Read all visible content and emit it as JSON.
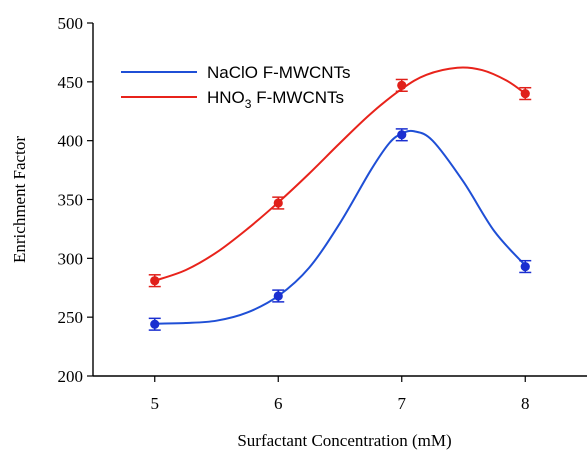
{
  "chart_data": {
    "type": "line",
    "title": "",
    "xlabel": "Surfactant Concentration (mM)",
    "ylabel": "Enrichment Factor",
    "x": [
      5,
      6,
      7,
      8
    ],
    "xlim": [
      4.5,
      8.5
    ],
    "ylim": [
      200,
      500
    ],
    "y_ticks": [
      "200",
      "250",
      "300",
      "350",
      "400",
      "450",
      "500"
    ],
    "x_ticks": [
      "5",
      "6",
      "7",
      "8"
    ],
    "legend_placement": "top-left",
    "grid": false,
    "series": [
      {
        "name": "NaClO F-MWCNTs",
        "legend_main": "NaClO F-MWCNTs",
        "legend_sub": "",
        "legend_tail": "",
        "color": "#1f4fd6",
        "marker_color": "#1a2fd0",
        "values": [
          244,
          268,
          405,
          293
        ],
        "errors": [
          5,
          5,
          5,
          5
        ],
        "curve": [
          [
            5.0,
            244.5
          ],
          [
            5.25,
            245.0
          ],
          [
            5.5,
            247.0
          ],
          [
            5.75,
            254.0
          ],
          [
            6.0,
            268.0
          ],
          [
            6.25,
            292.0
          ],
          [
            6.5,
            330.0
          ],
          [
            6.75,
            375.0
          ],
          [
            6.9,
            398.0
          ],
          [
            7.0,
            406.0
          ],
          [
            7.1,
            408.0
          ],
          [
            7.25,
            400.0
          ],
          [
            7.5,
            365.0
          ],
          [
            7.75,
            323.0
          ],
          [
            8.0,
            294.0
          ]
        ]
      },
      {
        "name": "HNO3 F-MWCNTs",
        "legend_main": "HNO",
        "legend_sub": "3",
        "legend_tail": " F-MWCNTs",
        "color": "#e8231b",
        "marker_color": "#e0201a",
        "values": [
          281,
          347,
          447,
          440
        ],
        "errors": [
          5,
          5,
          5,
          5
        ],
        "curve": [
          [
            5.0,
            281.0
          ],
          [
            5.25,
            290.0
          ],
          [
            5.5,
            305.0
          ],
          [
            5.75,
            325.0
          ],
          [
            6.0,
            347.5
          ],
          [
            6.25,
            372.0
          ],
          [
            6.5,
            398.0
          ],
          [
            6.75,
            423.0
          ],
          [
            7.0,
            444.0
          ],
          [
            7.2,
            456.0
          ],
          [
            7.45,
            462.0
          ],
          [
            7.65,
            460.0
          ],
          [
            7.85,
            451.0
          ],
          [
            8.0,
            440.0
          ]
        ]
      }
    ]
  }
}
